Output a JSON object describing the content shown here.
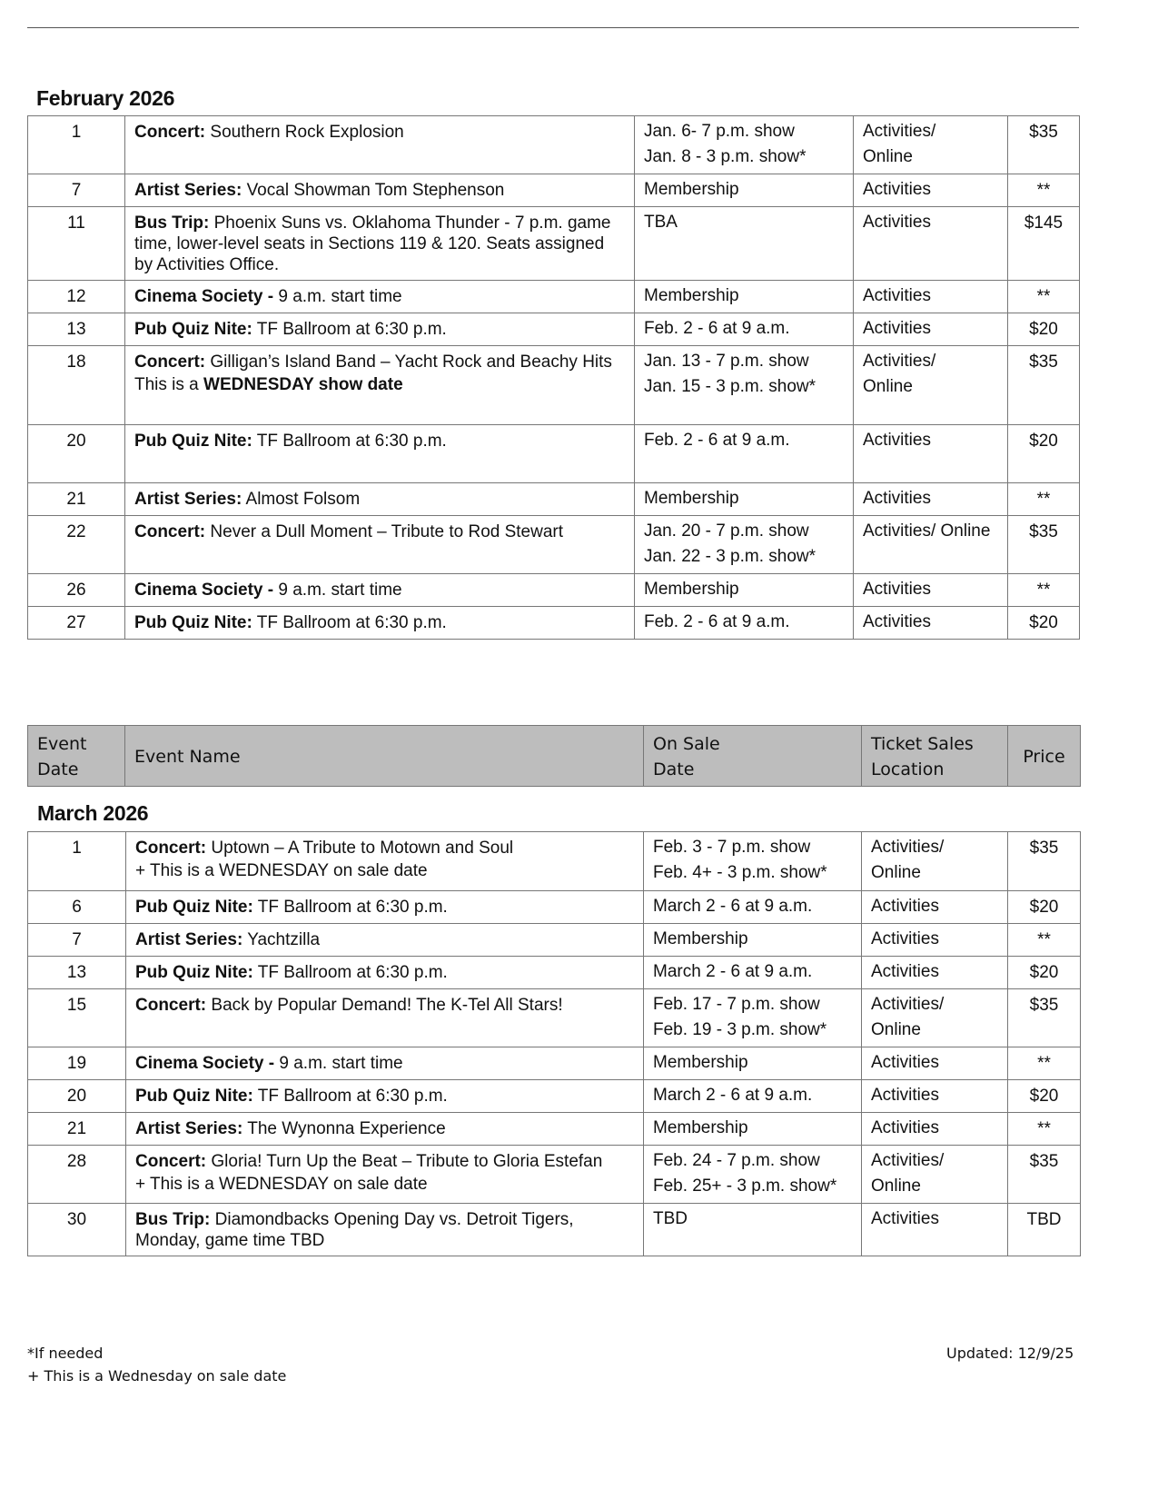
{
  "header_columns": {
    "date": "Event Date",
    "date_lines": [
      "Event",
      "Date"
    ],
    "name": "Event Name",
    "onsale_lines": [
      "On Sale",
      "Date"
    ],
    "location_lines": [
      "Ticket Sales",
      "Location"
    ],
    "price": "Price"
  },
  "february": {
    "title": "February 2026",
    "rows": [
      {
        "date": "1",
        "kind": "Concert:",
        "name": "Southern Rock Explosion",
        "onsale": [
          "Jan. 6- 7 p.m. show",
          "Jan. 8 - 3 p.m. show*"
        ],
        "location": [
          "Activities/",
          "Online"
        ],
        "price": "$35"
      },
      {
        "date": "7",
        "kind": "Artist Series:",
        "name": "Vocal Showman Tom Stephenson",
        "onsale": [
          "Membership"
        ],
        "location": [
          "Activities"
        ],
        "price": "**"
      },
      {
        "date": "11",
        "kind": "Bus Trip:",
        "name": "Phoenix Suns vs. Oklahoma Thunder - 7 p.m. game time, lower-level seats in Sections 119 & 120. Seats assigned by Activities Office.",
        "onsale": [
          "TBA"
        ],
        "location": [
          "Activities"
        ],
        "price": "$145"
      },
      {
        "date": "12",
        "kind": "Cinema Society -",
        "name": "9 a.m. start time",
        "onsale": [
          "Membership"
        ],
        "location": [
          "Activities"
        ],
        "price": "**"
      },
      {
        "date": "13",
        "kind": "Pub Quiz Nite:",
        "name": "TF Ballroom at 6:30 p.m.",
        "onsale": [
          "Feb. 2 - 6 at 9 a.m."
        ],
        "location": [
          "Activities"
        ],
        "price": "$20"
      },
      {
        "date": "18",
        "kind": "Concert:",
        "name": "Gilligan’s Island Band – Yacht Rock and Beachy Hits",
        "extra_pre": "This is a ",
        "extra_bold": "WEDNESDAY show date",
        "onsale": [
          "Jan. 13 - 7 p.m. show",
          "Jan. 15 - 3 p.m. show*"
        ],
        "location": [
          "Activities/",
          "Online"
        ],
        "price": "$35"
      },
      {
        "date": "20",
        "kind": "Pub Quiz Nite:",
        "name": "TF Ballroom at 6:30 p.m.",
        "onsale": [
          "Feb. 2 - 6 at 9 a.m."
        ],
        "location": [
          "Activities"
        ],
        "price": "$20"
      },
      {
        "date": "21",
        "kind": "Artist Series:",
        "name": "Almost Folsom",
        "onsale": [
          "Membership"
        ],
        "location": [
          "Activities"
        ],
        "price": "**"
      },
      {
        "date": "22",
        "kind": "Concert:",
        "name": "Never a Dull Moment – Tribute to Rod Stewart",
        "onsale": [
          "Jan. 20 - 7 p.m. show",
          "Jan. 22 - 3 p.m. show*"
        ],
        "location": [
          "Activities/ Online"
        ],
        "price": "$35"
      },
      {
        "date": "26",
        "kind": "Cinema Society -",
        "name": "9 a.m. start time",
        "onsale": [
          "Membership"
        ],
        "location": [
          "Activities"
        ],
        "price": "**"
      },
      {
        "date": "27",
        "kind": "Pub Quiz Nite:",
        "name": "TF Ballroom at 6:30 p.m.",
        "onsale": [
          "Feb. 2 - 6 at 9 a.m."
        ],
        "location": [
          "Activities"
        ],
        "price": "$20"
      }
    ]
  },
  "march": {
    "title": "March 2026",
    "rows": [
      {
        "date": "1",
        "kind": "Concert:",
        "name": "Uptown – A Tribute to Motown and Soul",
        "extra_pre": "+ This is a WEDNESDAY on sale date",
        "onsale": [
          "Feb. 3 - 7 p.m. show",
          "Feb. 4+ - 3 p.m. show*"
        ],
        "location": [
          "Activities/",
          "Online"
        ],
        "price": "$35"
      },
      {
        "date": "6",
        "kind": "Pub Quiz Nite:",
        "name": "TF Ballroom at 6:30 p.m.",
        "onsale": [
          "March 2 - 6 at 9 a.m."
        ],
        "location": [
          "Activities"
        ],
        "price": "$20"
      },
      {
        "date": "7",
        "kind": "Artist Series:",
        "name": "Yachtzilla",
        "onsale": [
          "Membership"
        ],
        "location": [
          "Activities"
        ],
        "price": "**"
      },
      {
        "date": "13",
        "kind": "Pub Quiz Nite:",
        "name": "TF Ballroom at 6:30 p.m.",
        "onsale": [
          "March 2 - 6 at 9 a.m."
        ],
        "location": [
          "Activities"
        ],
        "price": "$20"
      },
      {
        "date": "15",
        "kind": "Concert:",
        "name": "Back by Popular Demand! The K-Tel All Stars!",
        "onsale": [
          "Feb. 17 - 7 p.m. show",
          "Feb. 19 - 3 p.m. show*"
        ],
        "location": [
          "Activities/",
          "Online"
        ],
        "price": "$35"
      },
      {
        "date": "19",
        "kind": "Cinema Society -",
        "name": "9 a.m. start time",
        "onsale": [
          "Membership"
        ],
        "location": [
          "Activities"
        ],
        "price": "**"
      },
      {
        "date": "20",
        "kind": "Pub Quiz Nite:",
        "name": "TF Ballroom at 6:30 p.m.",
        "onsale": [
          "March 2 - 6 at 9 a.m."
        ],
        "location": [
          "Activities"
        ],
        "price": "$20"
      },
      {
        "date": "21",
        "kind": "Artist Series:",
        "name": "The Wynonna Experience",
        "onsale": [
          "Membership"
        ],
        "location": [
          "Activities"
        ],
        "price": "**"
      },
      {
        "date": "28",
        "kind": "Concert:",
        "name": "Gloria! Turn Up the Beat – Tribute to Gloria Estefan",
        "extra_pre": "+ This is a WEDNESDAY on sale date",
        "onsale": [
          "Feb. 24 - 7 p.m. show",
          "Feb. 25+ - 3 p.m. show*"
        ],
        "location": [
          "Activities/",
          "Online"
        ],
        "price": "$35"
      },
      {
        "date": "30",
        "kind": "Bus Trip:",
        "name": "Diamondbacks Opening Day vs. Detroit Tigers, Monday, game time TBD",
        "onsale": [
          "TBD"
        ],
        "location": [
          "Activities"
        ],
        "price": "TBD"
      }
    ]
  },
  "footer": {
    "note_if_needed": "*If needed",
    "note_wednesday": "+ This is a Wednesday on sale date",
    "updated": "Updated: 12/9/25"
  }
}
